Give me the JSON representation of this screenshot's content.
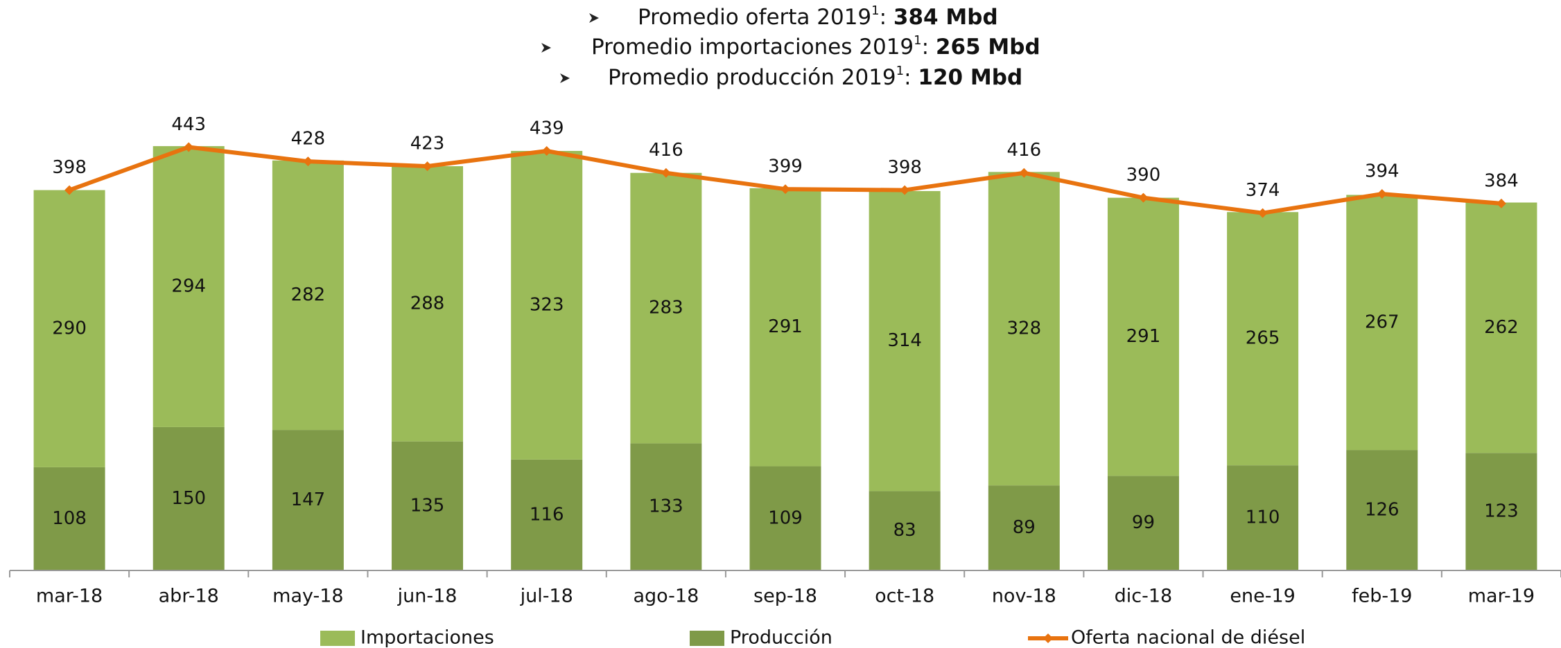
{
  "chart_data": {
    "type": "bar",
    "title_lines": [
      {
        "text": "Promedio oferta 2019",
        "sup": "1",
        "sep": ":",
        "value": "384 Mbd"
      },
      {
        "text": "Promedio importaciones 2019",
        "sup": "1",
        "sep": ":",
        "value": "265 Mbd"
      },
      {
        "text": "Promedio producción 2019",
        "sup": "1",
        "sep": ":",
        "value": "120 Mbd"
      }
    ],
    "categories": [
      "mar-18",
      "abr-18",
      "may-18",
      "jun-18",
      "jul-18",
      "ago-18",
      "sep-18",
      "oct-18",
      "nov-18",
      "dic-18",
      "ene-19",
      "feb-19",
      "mar-19"
    ],
    "series": [
      {
        "name": "Importaciones",
        "type": "bar",
        "color": "#9bbb59",
        "values": [
          290,
          294,
          282,
          288,
          323,
          283,
          291,
          314,
          328,
          291,
          265,
          267,
          262
        ]
      },
      {
        "name": "Producción",
        "type": "bar",
        "color": "#7f9a48",
        "values": [
          108,
          150,
          147,
          135,
          116,
          133,
          109,
          83,
          89,
          99,
          110,
          126,
          123
        ]
      },
      {
        "name": "Oferta nacional de diésel",
        "type": "line",
        "color": "#e8730f",
        "values": [
          398,
          443,
          428,
          423,
          439,
          416,
          399,
          398,
          416,
          390,
          374,
          394,
          384
        ]
      }
    ],
    "ylim": [
      0,
      460
    ],
    "stacked": true
  }
}
